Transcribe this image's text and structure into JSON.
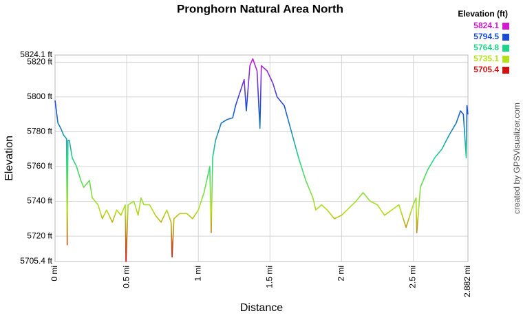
{
  "chart_data": {
    "type": "line",
    "title": "Pronghorn Natural Area North",
    "x_label": "Distance",
    "y_label": "Elevation",
    "credit": "created by GPSVisualizer.com",
    "x": [
      0,
      0.02,
      0.04,
      0.06,
      0.08,
      0.085,
      0.09,
      0.1,
      0.12,
      0.15,
      0.18,
      0.2,
      0.24,
      0.26,
      0.3,
      0.33,
      0.36,
      0.4,
      0.43,
      0.46,
      0.49,
      0.495,
      0.51,
      0.55,
      0.58,
      0.6,
      0.62,
      0.66,
      0.7,
      0.74,
      0.78,
      0.81,
      0.817,
      0.83,
      0.87,
      0.92,
      0.96,
      1.0,
      1.04,
      1.08,
      1.09,
      1.1,
      1.12,
      1.16,
      1.2,
      1.24,
      1.26,
      1.3,
      1.32,
      1.335,
      1.36,
      1.38,
      1.41,
      1.43,
      1.44,
      1.48,
      1.52,
      1.55,
      1.6,
      1.65,
      1.7,
      1.75,
      1.8,
      1.82,
      1.86,
      1.9,
      1.95,
      2.0,
      2.05,
      2.1,
      2.15,
      2.2,
      2.25,
      2.3,
      2.35,
      2.4,
      2.45,
      2.5,
      2.52,
      2.525,
      2.55,
      2.6,
      2.65,
      2.7,
      2.75,
      2.8,
      2.83,
      2.85,
      2.87,
      2.875,
      2.882
    ],
    "values": [
      5798,
      5785,
      5782,
      5778,
      5776,
      5715,
      5775,
      5775,
      5765,
      5760,
      5752,
      5748,
      5752,
      5742,
      5738,
      5730,
      5735,
      5728,
      5735,
      5732,
      5738,
      5705.4,
      5738,
      5740,
      5732,
      5742,
      5738,
      5738,
      5732,
      5728,
      5735,
      5728,
      5708,
      5730,
      5733,
      5733,
      5730,
      5735,
      5745,
      5760,
      5722,
      5765,
      5775,
      5785,
      5787,
      5788,
      5795,
      5805,
      5810,
      5792,
      5818,
      5822,
      5815,
      5782,
      5818,
      5815,
      5808,
      5800,
      5795,
      5780,
      5765,
      5752,
      5742,
      5735,
      5738,
      5735,
      5730,
      5732,
      5736,
      5740,
      5745,
      5740,
      5738,
      5732,
      5735,
      5738,
      5725,
      5738,
      5742,
      5722,
      5748,
      5758,
      5765,
      5770,
      5778,
      5785,
      5792,
      5790,
      5765,
      5795,
      5790
    ],
    "xlim": [
      0,
      2.882
    ],
    "ylim": [
      5705.4,
      5824.1
    ],
    "xticks": [
      {
        "value": 0,
        "label": "0 mi"
      },
      {
        "value": 0.5,
        "label": "0.5 mi"
      },
      {
        "value": 1,
        "label": "1 mi"
      },
      {
        "value": 1.5,
        "label": "1.5 mi"
      },
      {
        "value": 2,
        "label": "2 mi"
      },
      {
        "value": 2.5,
        "label": "2.5 mi"
      },
      {
        "value": 2.882,
        "label": "2.882 mi"
      }
    ],
    "yticks": [
      {
        "value": 5705.4,
        "label": "5705.4 ft"
      },
      {
        "value": 5720,
        "label": "5720 ft"
      },
      {
        "value": 5740,
        "label": "5740 ft"
      },
      {
        "value": 5760,
        "label": "5760 ft"
      },
      {
        "value": 5780,
        "label": "5780 ft"
      },
      {
        "value": 5800,
        "label": "5800 ft"
      },
      {
        "value": 5820,
        "label": "5820 ft"
      },
      {
        "value": 5824.1,
        "label": "5824.1 ft"
      }
    ],
    "grid": true,
    "legend": {
      "title": "Elevation (ft)",
      "position": "top-right",
      "entries": [
        {
          "value": 5824.1,
          "color": "#d21ad2"
        },
        {
          "value": 5794.5,
          "color": "#1a4ad6"
        },
        {
          "value": 5764.8,
          "color": "#1fd488"
        },
        {
          "value": 5735.1,
          "color": "#b4e01c"
        },
        {
          "value": 5705.4,
          "color": "#d01212"
        }
      ]
    }
  }
}
